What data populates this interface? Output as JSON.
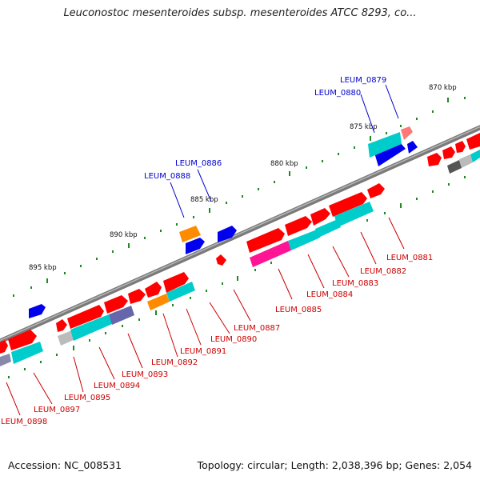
{
  "title": "Leuconostoc mesenteroides subsp. mesenteroides ATCC 8293, co...",
  "footer": {
    "accession": "Accession: NC_008531",
    "summary": "Topology: circular; Length: 2,038,396 bp; Genes: 2,054"
  },
  "colors": {
    "backbone": "#808080",
    "forward": "#ff0000",
    "reverse": "#0000ee",
    "cyan": "#00cccc",
    "orange": "#ff8c00",
    "magenta": "#ff1493",
    "gray": "#bbbbbb",
    "label_red": "#cc0000",
    "label_blue": "#0000cc",
    "tick": "#006600"
  },
  "scale_ticks": [
    "870 kbp",
    "875 kbp",
    "880 kbp",
    "885 kbp",
    "890 kbp",
    "895 kbp"
  ],
  "gene_labels_top": [
    "LEUM_0879",
    "LEUM_0880",
    "LEUM_0886",
    "LEUM_0888"
  ],
  "gene_labels_bottom": [
    "LEUM_0881",
    "LEUM_0882",
    "LEUM_0883",
    "LEUM_0884",
    "LEUM_0885",
    "LEUM_0887",
    "LEUM_0890",
    "LEUM_0891",
    "LEUM_0892",
    "LEUM_0893",
    "LEUM_0894",
    "LEUM_0895",
    "LEUM_0897",
    "LEUM_0898"
  ]
}
